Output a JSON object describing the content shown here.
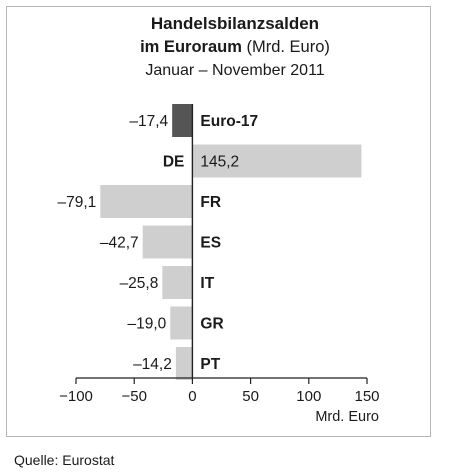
{
  "chart_data": {
    "type": "bar",
    "orientation": "horizontal",
    "title_bold": "Handelsbilanzsalden",
    "title_line2_bold": "im Euroraum",
    "title_line2_rest": "(Mrd. Euro)",
    "subtitle": "Januar – November 2011",
    "categories": [
      "Euro-17",
      "DE",
      "FR",
      "ES",
      "IT",
      "GR",
      "PT"
    ],
    "values": [
      -17.4,
      145.2,
      -79.1,
      -42.7,
      -25.8,
      -19.0,
      -14.2
    ],
    "value_labels": [
      "–17,4",
      "145,2",
      "–79,1",
      "–42,7",
      "–25,8",
      "–19,0",
      "–14,2"
    ],
    "highlight_category": "Euro-17",
    "xlim": [
      -100,
      150
    ],
    "xticks": [
      -100,
      -50,
      0,
      50,
      100,
      150
    ],
    "xtick_labels": [
      "−100",
      "−50",
      "0",
      "50",
      "100",
      "150"
    ],
    "xlabel": "Mrd. Euro",
    "grid": false,
    "colors": {
      "bar": "#cfcfcf",
      "highlight": "#555555",
      "axis": "#222222"
    }
  },
  "source": "Quelle: Eurostat"
}
